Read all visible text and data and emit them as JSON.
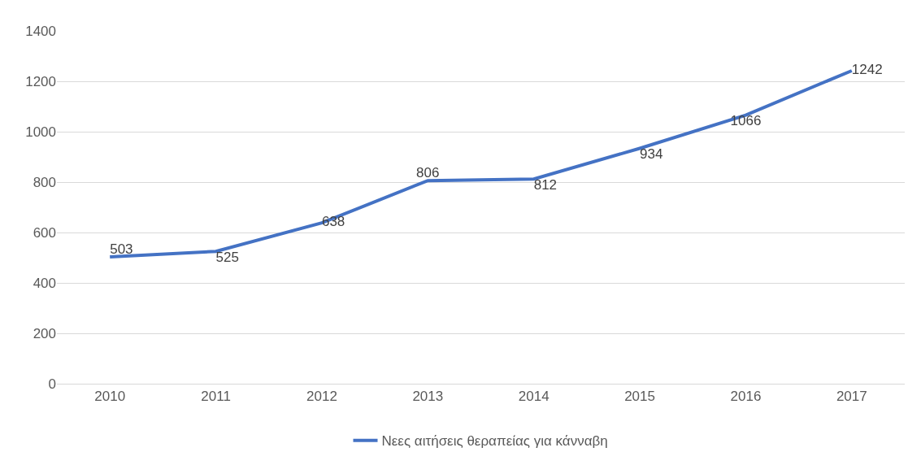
{
  "chart_data": {
    "type": "line",
    "categories": [
      "2010",
      "2011",
      "2012",
      "2013",
      "2014",
      "2015",
      "2016",
      "2017"
    ],
    "series": [
      {
        "name": "Νεες αιτήσεις θεραπείας για κάνναβη",
        "color": "#4472c4",
        "values": [
          503,
          525,
          638,
          806,
          812,
          934,
          1066,
          1242
        ]
      }
    ],
    "ylim": [
      0,
      1400
    ],
    "yticks": [
      0,
      200,
      400,
      600,
      800,
      1000,
      1200,
      1400
    ],
    "grid": "y",
    "legend": "bottom",
    "data_labels": true,
    "marker": "none",
    "line_style": "solid"
  }
}
